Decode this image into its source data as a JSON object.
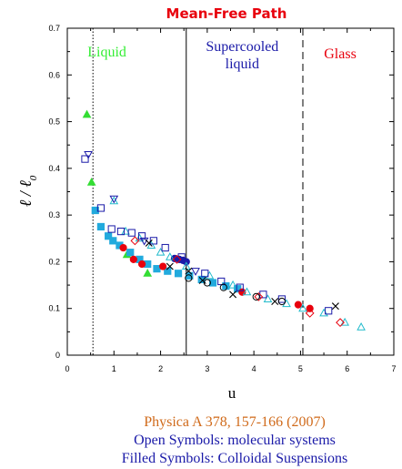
{
  "chart_data": {
    "type": "scatter",
    "title": "Mean-Free Path",
    "xlabel": "u",
    "ylabel": "ℓ / ℓ0",
    "ylabel_main": "ℓ / ℓ",
    "ylabel_sub": "0",
    "xlim": [
      0,
      7
    ],
    "ylim": [
      0,
      0.7
    ],
    "xticks": [
      0,
      1,
      2,
      3,
      4,
      5,
      6,
      7
    ],
    "yticks": [
      0,
      0.1,
      0.2,
      0.3,
      0.4,
      0.5,
      0.6,
      0.7
    ],
    "grid": false,
    "regions": [
      {
        "label": "Liquid",
        "color": "#33ee33",
        "boundary_x": 0.55,
        "boundary_style": "dotted"
      },
      {
        "label": "Supercooled liquid",
        "lines": [
          "Supercooled",
          "liquid"
        ],
        "color": "#1a1aa8",
        "boundary_x": 2.55,
        "boundary_style": "solid"
      },
      {
        "label": "Glass",
        "color": "#e8000d",
        "boundary_x": 5.05,
        "boundary_style": "dashed"
      }
    ],
    "series": [
      {
        "symbol": "triangle",
        "filled": true,
        "color": "#33dd33",
        "x": [
          0.42,
          0.52,
          1.28,
          1.72
        ],
        "y": [
          0.515,
          0.37,
          0.215,
          0.175
        ]
      },
      {
        "symbol": "square",
        "filled": true,
        "color": "#22aadd",
        "x": [
          0.6,
          0.72,
          0.88,
          0.98,
          1.12,
          1.35,
          1.55,
          1.72,
          1.92,
          2.15,
          2.38,
          2.62,
          2.88,
          3.12,
          3.4,
          3.65
        ],
        "y": [
          0.31,
          0.275,
          0.255,
          0.245,
          0.235,
          0.22,
          0.205,
          0.195,
          0.185,
          0.18,
          0.175,
          0.17,
          0.162,
          0.155,
          0.148,
          0.142
        ]
      },
      {
        "symbol": "circle",
        "filled": true,
        "color": "#e8000d",
        "x": [
          1.2,
          1.42,
          1.6,
          2.05,
          3.75,
          4.95,
          5.2
        ],
        "y": [
          0.23,
          0.205,
          0.195,
          0.19,
          0.135,
          0.108,
          0.1
        ]
      },
      {
        "symbol": "circle",
        "filled": true,
        "color": "#1a1aa8",
        "x": [
          2.3,
          2.4,
          2.48,
          2.55
        ],
        "y": [
          0.207,
          0.205,
          0.203,
          0.2
        ]
      },
      {
        "symbol": "triangle",
        "filled": false,
        "color": "#22bbcc",
        "x": [
          1.0,
          1.25,
          1.55,
          1.8,
          2.0,
          2.2,
          2.55,
          3.05,
          3.55,
          3.85,
          4.3,
          4.7,
          5.05,
          5.5,
          5.95,
          6.3
        ],
        "y": [
          0.33,
          0.265,
          0.25,
          0.235,
          0.22,
          0.21,
          0.19,
          0.17,
          0.15,
          0.135,
          0.12,
          0.11,
          0.1,
          0.09,
          0.07,
          0.06
        ]
      },
      {
        "symbol": "down-triangle",
        "filled": false,
        "color": "#1a1aa8",
        "x": [
          0.45,
          1.0,
          1.65,
          2.75
        ],
        "y": [
          0.43,
          0.335,
          0.245,
          0.18
        ]
      },
      {
        "symbol": "square",
        "filled": false,
        "color": "#1a1aa8",
        "x": [
          0.38,
          0.72,
          0.95,
          1.15,
          1.38,
          1.6,
          1.85,
          2.1,
          2.45,
          2.95,
          3.3,
          3.7,
          4.2,
          4.6,
          5.6
        ],
        "y": [
          0.42,
          0.315,
          0.27,
          0.265,
          0.262,
          0.255,
          0.245,
          0.23,
          0.21,
          0.175,
          0.158,
          0.145,
          0.13,
          0.12,
          0.095
        ]
      },
      {
        "symbol": "diamond",
        "filled": false,
        "color": "#e8000d",
        "x": [
          1.45,
          2.35,
          4.1,
          5.2,
          5.85
        ],
        "y": [
          0.245,
          0.205,
          0.125,
          0.09,
          0.07
        ]
      },
      {
        "symbol": "circle",
        "filled": false,
        "color": "#000000",
        "x": [
          2.6,
          3.0,
          3.35,
          4.05,
          4.6
        ],
        "y": [
          0.165,
          0.155,
          0.145,
          0.125,
          0.115
        ]
      },
      {
        "symbol": "cross",
        "filled": false,
        "color": "#000000",
        "x": [
          1.75,
          2.2,
          2.6,
          2.9,
          3.55,
          4.45,
          5.75
        ],
        "y": [
          0.24,
          0.19,
          0.18,
          0.16,
          0.13,
          0.115,
          0.105
        ]
      }
    ]
  },
  "footer": {
    "citation": "Physica A 378, 157-166 (2007)",
    "open_symbols": "Open Symbols: molecular systems",
    "filled_symbols": "Filled Symbols: Colloidal Suspensions"
  },
  "colors": {
    "citation": "#d06a1a",
    "footer_text": "#1a1aa8"
  }
}
